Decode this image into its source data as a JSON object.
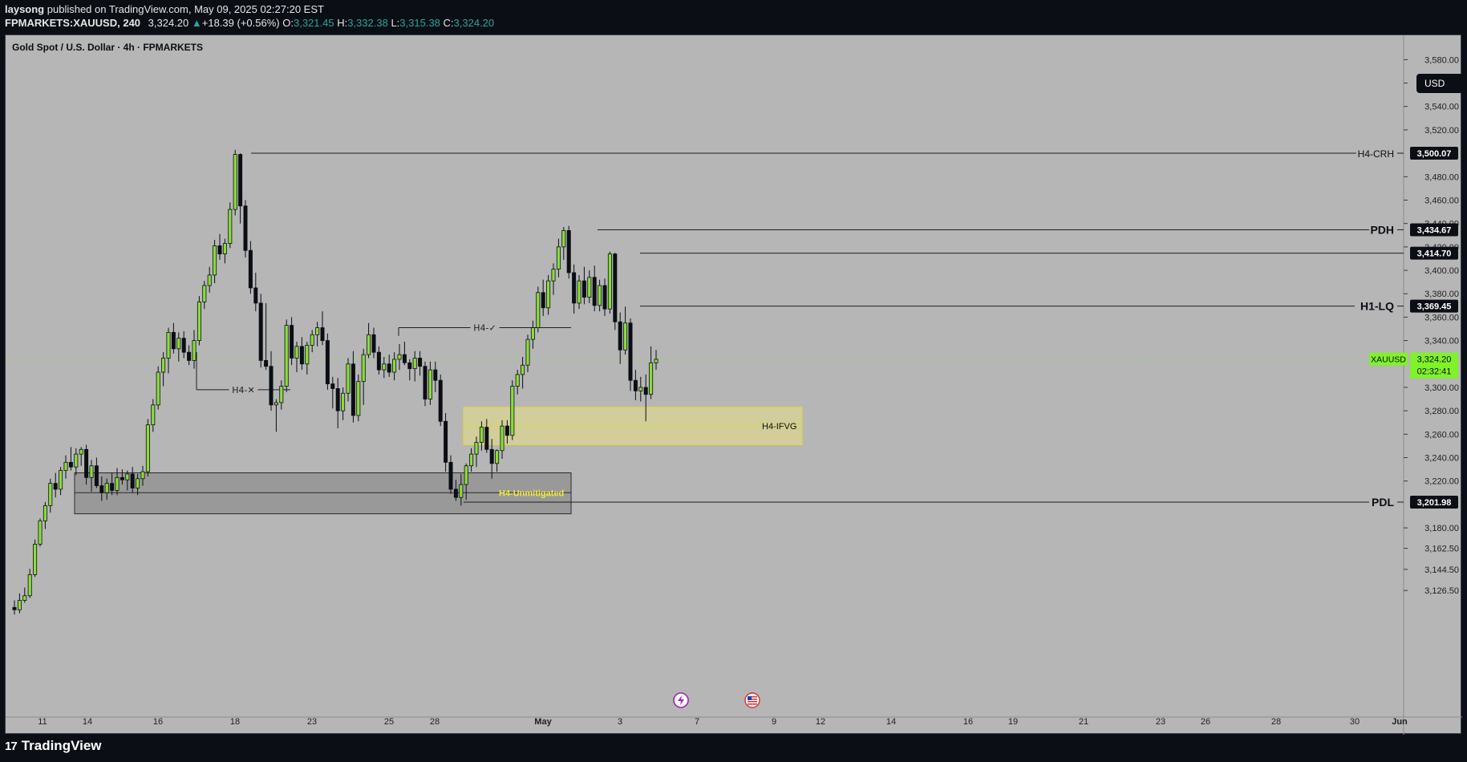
{
  "header": {
    "publisher": "laysong",
    "published_text": "published on TradingView.com, May 09, 2025 02:27:20 EST",
    "symbol": "FPMARKETS:XAUUSD, 240",
    "last": "3,324.20",
    "change": "+18.39 (+0.56%)",
    "o_label": "O:",
    "o_value": "3,321.45",
    "h_label": "H:",
    "h_value": "3,332.38",
    "l_label": "L:",
    "l_value": "3,315.38",
    "c_label": "C:",
    "c_value": "3,324.20"
  },
  "chart_title": "Gold Spot / U.S. Dollar · 4h · FPMARKETS",
  "currency_button": "USD",
  "footer_brand": "TradingView",
  "colors": {
    "background": "#b6b6b6",
    "bull_fill": "#8bdc3c",
    "bear_fill": "#0b0e14",
    "fvg_zone": "#f2ea7a",
    "ob_zone": "#8f8f8f",
    "last_price_bg": "#7ff22a"
  },
  "events": [
    {
      "icon": "lightning-event-icon",
      "x": "May 10, 2025"
    },
    {
      "icon": "us-flag-event-icon",
      "x": "May 13, 2025"
    }
  ],
  "chart_data": {
    "type": "candlestick",
    "ylim": [
      3110,
      3600
    ],
    "y_ticks": [
      "3,580.00",
      "3,560.00",
      "3,540.00",
      "3,520.00",
      "3,480.00",
      "3,460.00",
      "3,440.00",
      "3,420.00",
      "3,400.00",
      "3,380.00",
      "3,360.00",
      "3,340.00",
      "3,300.00",
      "3,280.00",
      "3,260.00",
      "3,240.00",
      "3,220.00",
      "3,180.00",
      "3,162.50",
      "3,144.50",
      "3,126.50"
    ],
    "x_ticks": [
      "11",
      "14",
      "16",
      "18",
      "23",
      "25",
      "28",
      "May",
      "3",
      "7",
      "9",
      "12",
      "14",
      "16",
      "19",
      "21",
      "23",
      "26",
      "28",
      "30",
      "Jun"
    ],
    "price_tags": [
      {
        "label": "H4-CRH",
        "value": "3,500.07",
        "y": 3500.07,
        "x_start": "Apr 22, 2025"
      },
      {
        "label": "PDH",
        "value": "3,434.67",
        "y": 3434.67,
        "x_start": "May 7, 2025"
      },
      {
        "label": "",
        "value": "3,414.70",
        "y": 3414.7,
        "x_start": "May 8, 2025"
      },
      {
        "label": "H1-LQ",
        "value": "3,369.45",
        "y": 3369.45,
        "x_start": "May 8, 2025"
      },
      {
        "label": "PDL",
        "value": "3,201.98",
        "y": 3201.98,
        "x_start": "May 1, 2025"
      }
    ],
    "last_price": {
      "symbol": "XAUUSD",
      "value": "3,324.20",
      "countdown": "02:32:41",
      "y": 3324.2
    },
    "annotations": [
      {
        "text": "H4-✕",
        "y": 3298,
        "x_range": [
          "Apr 17, 2025",
          "Apr 24, 2025"
        ]
      },
      {
        "text": "H4-✓",
        "y": 3351,
        "x_range": [
          "Apr 29, 2025",
          "May 6, 2025"
        ]
      },
      {
        "text": "H4-IFVG",
        "y_top": 3283,
        "y_bottom": 3251,
        "y_mid": 3267,
        "x_range": [
          "May 1, 2025",
          "May 15, 2025"
        ]
      },
      {
        "text": "H4-Unmitigated",
        "y_top": 3227,
        "y_bottom": 3192,
        "y_mid": 3210,
        "x_range": [
          "Apr 14, 2025",
          "May 6, 2025"
        ]
      }
    ],
    "candles": [
      [
        3112.0,
        3118.0,
        3106.0,
        3110.0
      ],
      [
        3110.0,
        3124.0,
        3107.0,
        3118.0
      ],
      [
        3118.0,
        3129.0,
        3116.0,
        3122.0
      ],
      [
        3122.0,
        3145.0,
        3120.0,
        3140.0
      ],
      [
        3140.0,
        3170.0,
        3138.0,
        3166.0
      ],
      [
        3166.0,
        3188.0,
        3164.0,
        3186.0
      ],
      [
        3186.0,
        3202.0,
        3179.0,
        3199.0
      ],
      [
        3199.0,
        3222.0,
        3193.0,
        3218.0
      ],
      [
        3218.0,
        3227.0,
        3206.0,
        3213.0
      ],
      [
        3213.0,
        3232.0,
        3208.0,
        3229.0
      ],
      [
        3229.0,
        3242.0,
        3222.0,
        3236.0
      ],
      [
        3236.0,
        3249.0,
        3229.0,
        3232.0
      ],
      [
        3232.0,
        3248.0,
        3225.0,
        3243.0
      ],
      [
        3243.0,
        3249.0,
        3233.0,
        3247.0
      ],
      [
        3247.0,
        3251.0,
        3217.0,
        3223.0
      ],
      [
        3223.0,
        3238.0,
        3211.0,
        3233.0
      ],
      [
        3233.0,
        3240.0,
        3214.0,
        3216.0
      ],
      [
        3216.0,
        3224.0,
        3203.0,
        3210.0
      ],
      [
        3210.0,
        3222.0,
        3204.0,
        3218.0
      ],
      [
        3218.0,
        3227.0,
        3208.0,
        3212.0
      ],
      [
        3212.0,
        3231.0,
        3208.0,
        3223.0
      ],
      [
        3223.0,
        3230.0,
        3217.0,
        3221.0
      ],
      [
        3221.0,
        3229.0,
        3212.0,
        3226.0
      ],
      [
        3226.0,
        3232.0,
        3210.0,
        3214.0
      ],
      [
        3214.0,
        3226.0,
        3208.0,
        3222.0
      ],
      [
        3222.0,
        3233.0,
        3216.0,
        3228.0
      ],
      [
        3228.0,
        3273.0,
        3224.0,
        3268.0
      ],
      [
        3268.0,
        3290.0,
        3262.0,
        3285.0
      ],
      [
        3285.0,
        3318.0,
        3281.0,
        3313.0
      ],
      [
        3313.0,
        3330.0,
        3301.0,
        3325.0
      ],
      [
        3325.0,
        3351.0,
        3312.0,
        3347.0
      ],
      [
        3347.0,
        3355.0,
        3329.0,
        3333.0
      ],
      [
        3333.0,
        3347.0,
        3322.0,
        3342.0
      ],
      [
        3342.0,
        3348.0,
        3325.0,
        3330.0
      ],
      [
        3330.0,
        3336.0,
        3319.0,
        3323.0
      ],
      [
        3323.0,
        3349.0,
        3316.0,
        3340.0
      ],
      [
        3340.0,
        3378.0,
        3336.0,
        3373.0
      ],
      [
        3373.0,
        3391.0,
        3367.0,
        3387.0
      ],
      [
        3387.0,
        3403.0,
        3381.0,
        3396.0
      ],
      [
        3396.0,
        3426.0,
        3389.0,
        3421.0
      ],
      [
        3421.0,
        3431.0,
        3409.0,
        3414.0
      ],
      [
        3414.0,
        3427.0,
        3406.0,
        3423.0
      ],
      [
        3423.0,
        3458.0,
        3419.0,
        3452.0
      ],
      [
        3452.0,
        3503.0,
        3447.0,
        3499.0
      ],
      [
        3499.0,
        3500.0,
        3440.0,
        3455.0
      ],
      [
        3455.0,
        3460.0,
        3411.0,
        3417.0
      ],
      [
        3417.0,
        3425.0,
        3380.0,
        3385.0
      ],
      [
        3385.0,
        3398.0,
        3365.0,
        3372.0
      ],
      [
        3372.0,
        3380.0,
        3317.0,
        3323.0
      ],
      [
        3323.0,
        3372.0,
        3315.0,
        3318.0
      ],
      [
        3318.0,
        3331.0,
        3280.0,
        3285.0
      ],
      [
        3285.0,
        3290.0,
        3262.0,
        3287.0
      ],
      [
        3287.0,
        3306.0,
        3281.0,
        3301.0
      ],
      [
        3301.0,
        3358.0,
        3296.0,
        3353.0
      ],
      [
        3353.0,
        3360.0,
        3319.0,
        3325.0
      ],
      [
        3325.0,
        3339.0,
        3313.0,
        3335.0
      ],
      [
        3335.0,
        3343.0,
        3315.0,
        3320.0
      ],
      [
        3320.0,
        3339.0,
        3311.0,
        3336.0
      ],
      [
        3336.0,
        3349.0,
        3330.0,
        3345.0
      ],
      [
        3345.0,
        3356.0,
        3335.0,
        3351.0
      ],
      [
        3351.0,
        3365.0,
        3336.0,
        3340.0
      ],
      [
        3340.0,
        3346.0,
        3298.0,
        3303.0
      ],
      [
        3303.0,
        3309.0,
        3282.0,
        3299.0
      ],
      [
        3299.0,
        3308.0,
        3265.0,
        3280.0
      ],
      [
        3280.0,
        3300.0,
        3272.0,
        3295.0
      ],
      [
        3295.0,
        3325.0,
        3288.0,
        3320.0
      ],
      [
        3320.0,
        3331.0,
        3270.0,
        3276.0
      ],
      [
        3276.0,
        3311.0,
        3271.0,
        3305.0
      ],
      [
        3305.0,
        3333.0,
        3285.0,
        3328.0
      ],
      [
        3328.0,
        3355.0,
        3325.0,
        3345.0
      ],
      [
        3345.0,
        3351.0,
        3325.0,
        3330.0
      ],
      [
        3330.0,
        3335.0,
        3311.0,
        3315.0
      ],
      [
        3315.0,
        3326.0,
        3308.0,
        3320.0
      ],
      [
        3320.0,
        3328.0,
        3309.0,
        3313.0
      ],
      [
        3313.0,
        3330.0,
        3306.0,
        3324.0
      ],
      [
        3324.0,
        3337.0,
        3315.0,
        3328.0
      ],
      [
        3328.0,
        3339.0,
        3319.0,
        3321.0
      ],
      [
        3321.0,
        3324.0,
        3306.0,
        3316.0
      ],
      [
        3316.0,
        3331.0,
        3305.0,
        3325.0
      ],
      [
        3325.0,
        3331.0,
        3310.0,
        3318.0
      ],
      [
        3318.0,
        3322.0,
        3284.0,
        3290.0
      ],
      [
        3290.0,
        3322.0,
        3285.0,
        3315.0
      ],
      [
        3315.0,
        3322.0,
        3296.0,
        3306.0
      ],
      [
        3306.0,
        3311.0,
        3267.0,
        3271.0
      ],
      [
        3271.0,
        3278.0,
        3228.0,
        3236.0
      ],
      [
        3236.0,
        3242.0,
        3209.0,
        3213.0
      ],
      [
        3213.0,
        3221.0,
        3203.0,
        3206.0
      ],
      [
        3206.0,
        3226.0,
        3199.0,
        3217.0
      ],
      [
        3217.0,
        3235.0,
        3204.0,
        3233.0
      ],
      [
        3233.0,
        3248.0,
        3228.0,
        3243.0
      ],
      [
        3243.0,
        3258.0,
        3232.0,
        3253.0
      ],
      [
        3253.0,
        3271.0,
        3246.0,
        3266.0
      ],
      [
        3266.0,
        3273.0,
        3244.0,
        3247.0
      ],
      [
        3247.0,
        3256.0,
        3222.0,
        3235.0
      ],
      [
        3235.0,
        3247.0,
        3228.0,
        3246.0
      ],
      [
        3246.0,
        3272.0,
        3239.0,
        3267.0
      ],
      [
        3267.0,
        3272.0,
        3252.0,
        3259.0
      ],
      [
        3259.0,
        3306.0,
        3255.0,
        3301.0
      ],
      [
        3301.0,
        3315.0,
        3294.0,
        3311.0
      ],
      [
        3311.0,
        3326.0,
        3299.0,
        3319.0
      ],
      [
        3319.0,
        3345.0,
        3313.0,
        3341.0
      ],
      [
        3341.0,
        3357.0,
        3333.0,
        3351.0
      ],
      [
        3351.0,
        3386.0,
        3347.0,
        3381.0
      ],
      [
        3381.0,
        3392.0,
        3361.0,
        3368.0
      ],
      [
        3368.0,
        3396.0,
        3362.0,
        3391.0
      ],
      [
        3391.0,
        3406.0,
        3379.0,
        3401.0
      ],
      [
        3401.0,
        3427.0,
        3394.0,
        3420.0
      ],
      [
        3420.0,
        3437.0,
        3409.0,
        3434.0
      ],
      [
        3434.0,
        3438.0,
        3393.0,
        3398.0
      ],
      [
        3398.0,
        3405.0,
        3363.0,
        3372.0
      ],
      [
        3372.0,
        3396.0,
        3367.0,
        3391.0
      ],
      [
        3391.0,
        3403.0,
        3371.0,
        3377.0
      ],
      [
        3377.0,
        3400.0,
        3372.0,
        3394.0
      ],
      [
        3394.0,
        3404.0,
        3365.0,
        3370.0
      ],
      [
        3370.0,
        3392.0,
        3365.0,
        3387.0
      ],
      [
        3387.0,
        3393.0,
        3361.0,
        3367.0
      ],
      [
        3367.0,
        3416.0,
        3363.0,
        3414.0
      ],
      [
        3414.0,
        3415.0,
        3349.0,
        3356.0
      ],
      [
        3356.0,
        3364.0,
        3320.0,
        3332.0
      ],
      [
        3332.0,
        3369.0,
        3328.0,
        3355.0
      ],
      [
        3355.0,
        3359.0,
        3297.0,
        3306.0
      ],
      [
        3306.0,
        3315.0,
        3289.0,
        3297.0
      ],
      [
        3297.0,
        3309.0,
        3288.0,
        3300.0
      ],
      [
        3300.0,
        3311.0,
        3271.0,
        3294.0
      ],
      [
        3294.0,
        3335.0,
        3290.0,
        3321.0
      ],
      [
        3321.0,
        3332.0,
        3315.0,
        3324.0
      ]
    ]
  }
}
